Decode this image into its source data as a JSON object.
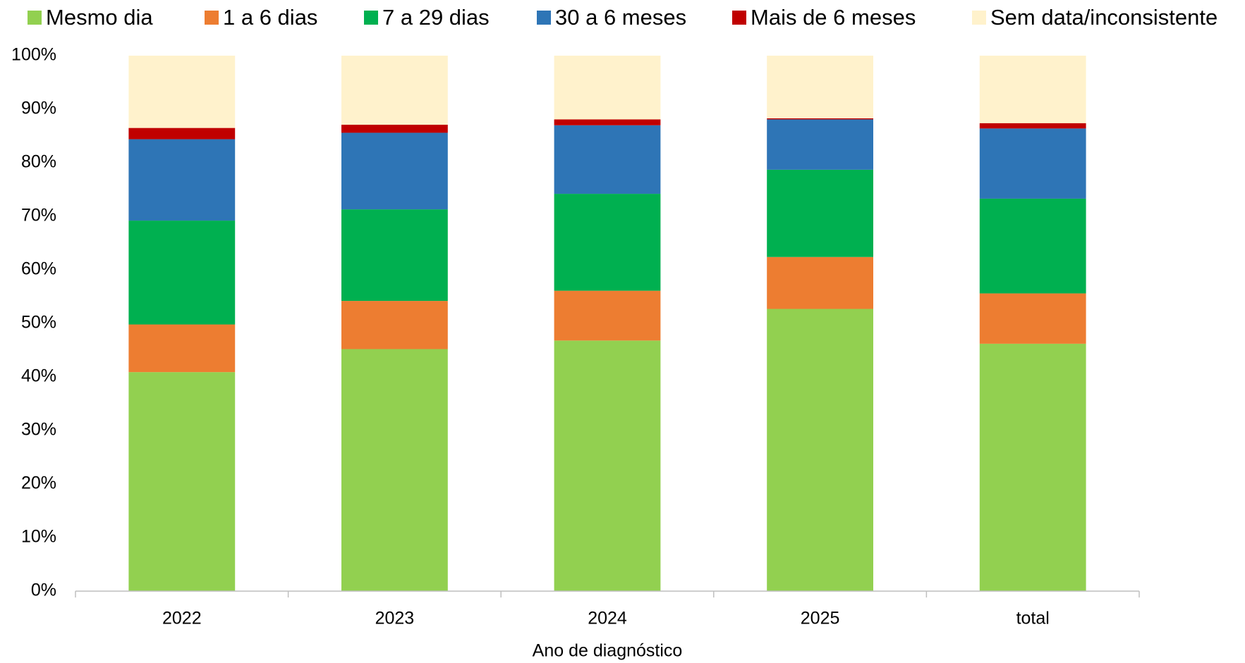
{
  "chart_data": {
    "type": "stacked_bar",
    "x_label": "Ano de diagnóstico",
    "categories": [
      "2022",
      "2023",
      "2024",
      "2025",
      "total"
    ],
    "series": [
      {
        "name": "Mesmo dia",
        "color": "#92d050",
        "values": [
          40.9,
          45.2,
          46.8,
          52.7,
          46.2
        ]
      },
      {
        "name": "1 a 6 dias",
        "color": "#ed7d31",
        "values": [
          8.9,
          9.0,
          9.3,
          9.7,
          9.4
        ]
      },
      {
        "name": "7 a 29 dias",
        "color": "#00b050",
        "values": [
          19.4,
          17.1,
          18.1,
          16.3,
          17.7
        ]
      },
      {
        "name": "30 a 6 meses",
        "color": "#2e75b6",
        "values": [
          15.2,
          14.3,
          12.8,
          9.4,
          13.1
        ]
      },
      {
        "name": "Mais de 6 meses",
        "color": "#c00000",
        "values": [
          2.1,
          1.5,
          1.1,
          0.2,
          1.0
        ]
      },
      {
        "name": "Sem data/inconsistente",
        "color": "#fff2cc",
        "values": [
          13.5,
          12.9,
          11.9,
          11.7,
          12.6
        ]
      }
    ],
    "ylim": [
      0,
      100
    ],
    "yticks": [
      {
        "value": 0,
        "label": "0%"
      },
      {
        "value": 10,
        "label": "10%"
      },
      {
        "value": 20,
        "label": "20%"
      },
      {
        "value": 30,
        "label": "30%"
      },
      {
        "value": 40,
        "label": "40%"
      },
      {
        "value": 50,
        "label": "50%"
      },
      {
        "value": 60,
        "label": "60%"
      },
      {
        "value": 70,
        "label": "70%"
      },
      {
        "value": 80,
        "label": "80%"
      },
      {
        "value": 90,
        "label": "90%"
      },
      {
        "value": 100,
        "label": "100%"
      }
    ],
    "legend": "top"
  }
}
